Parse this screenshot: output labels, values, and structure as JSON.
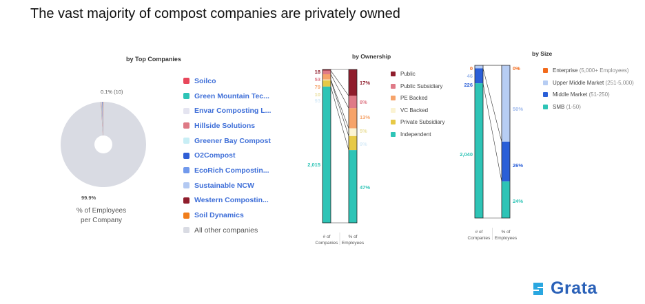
{
  "title": "The vast majority of compost companies are privately owned",
  "brand": {
    "name": "Grata",
    "color": "#2a6fcf"
  },
  "chart_data": [
    {
      "type": "pie",
      "title": "by Top Companies",
      "caption": [
        "% of Employees",
        "per Company"
      ],
      "data_labels": {
        "small": "0.1% (10)",
        "large": "99.9%"
      },
      "slices": [
        {
          "name": "Soilco",
          "value": 0.02,
          "color": "#e8475b"
        },
        {
          "name": "Green Mountain Tec...",
          "value": 0.02,
          "color": "#2ec4b6"
        },
        {
          "name": "Envar Composting L...",
          "value": 0.01,
          "color": "#e4e4f0"
        },
        {
          "name": "Hillside Solutions",
          "value": 0.01,
          "color": "#de7a86"
        },
        {
          "name": "Greener Bay Compost",
          "value": 0.01,
          "color": "#c8eef5"
        },
        {
          "name": "O2Compost",
          "value": 0.01,
          "color": "#2f5fd6"
        },
        {
          "name": "EcoRich Compostin...",
          "value": 0.01,
          "color": "#7199ec"
        },
        {
          "name": "Sustainable NCW",
          "value": 0.005,
          "color": "#b3c9f2"
        },
        {
          "name": "Western Compostin...",
          "value": 0.005,
          "color": "#8f1d2c"
        },
        {
          "name": "Soil Dynamics",
          "value": 0.005,
          "color": "#f07d1a"
        },
        {
          "name": "All other companies",
          "value": 99.9,
          "color": "#d9dbe3"
        }
      ]
    },
    {
      "type": "bar",
      "title": "by Ownership",
      "axis_labels": {
        "left": [
          "# of",
          "Companies"
        ],
        "right": [
          "% of",
          "Employees"
        ]
      },
      "series": [
        {
          "name": "Public",
          "companies": 18,
          "employees_pct": 17,
          "color": "#8f1d2c",
          "count_label": "18",
          "pct_label": "17%"
        },
        {
          "name": "Public Subsidiary",
          "companies": 53,
          "employees_pct": 8,
          "color": "#df7a87",
          "count_label": "53",
          "pct_label": "8%"
        },
        {
          "name": "PE Backed",
          "companies": 79,
          "employees_pct": 13,
          "color": "#f6a36a",
          "count_label": "79",
          "pct_label": "13%"
        },
        {
          "name": "VC Backed",
          "companies": 10,
          "employees_pct": 5,
          "color": "#fbf3d2",
          "count_label": "10",
          "pct_label": "5%"
        },
        {
          "name": "Private Subsidiary",
          "companies": 93,
          "employees_pct": 9,
          "color": "#e7c946",
          "count_label": "93",
          "pct_label": "9%"
        },
        {
          "name": "Independent",
          "companies": 2015,
          "employees_pct": 47,
          "color": "#2ec4b6",
          "count_label": "2,015",
          "pct_label": "47%"
        }
      ]
    },
    {
      "type": "bar",
      "title": "by Size",
      "axis_labels": {
        "left": [
          "# of",
          "Companies"
        ],
        "right": [
          "% of",
          "Employees"
        ]
      },
      "series": [
        {
          "name": "Enterprise",
          "detail": "(5,000+ Employees)",
          "companies": 0,
          "employees_pct": 0,
          "color": "#f26a1b",
          "count_label": "0",
          "pct_label": "0%"
        },
        {
          "name": "Upper Middle Market",
          "detail": "(251-5,000)",
          "companies": 46,
          "employees_pct": 50,
          "color": "#b7cdf3",
          "count_label": "46",
          "pct_label": "50%"
        },
        {
          "name": "Middle Market",
          "detail": "(51-250)",
          "companies": 226,
          "employees_pct": 26,
          "color": "#2a5fd8",
          "count_label": "226",
          "pct_label": "26%"
        },
        {
          "name": "SMB",
          "detail": "(1-50)",
          "companies": 2040,
          "employees_pct": 24,
          "color": "#2ec4b6",
          "count_label": "2,040",
          "pct_label": "24%"
        }
      ]
    }
  ]
}
